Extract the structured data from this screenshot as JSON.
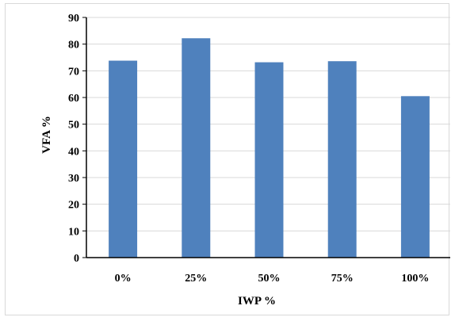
{
  "chart_data": {
    "type": "bar",
    "title": "",
    "xlabel": "IWP %",
    "ylabel": "VFA %",
    "categories": [
      "0%",
      "25%",
      "50%",
      "75%",
      "100%"
    ],
    "values": [
      73.8,
      82.2,
      73.2,
      73.6,
      60.5
    ],
    "ylim": [
      0,
      90
    ],
    "yticks": [
      0,
      10,
      20,
      30,
      40,
      50,
      60,
      70,
      80,
      90
    ],
    "grid": true,
    "bar_color": "#4f81bd",
    "grid_color": "#d9d9d9"
  }
}
